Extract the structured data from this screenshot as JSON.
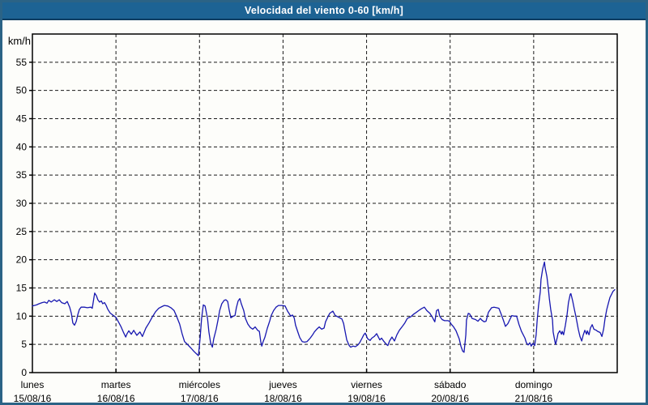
{
  "window": {
    "title": "Velocidad del viento 0-60 [km/h]"
  },
  "colors": {
    "title_bar": "#1d6394",
    "title_bar_border": "#0d3c61",
    "title_text": "#ffffff",
    "window_border": "#2b6386",
    "background": "#fdfdfa",
    "grid": "#1a1a1a",
    "axis": "#000000",
    "tick_text": "#000000",
    "line": "#1717b0"
  },
  "chart_data": {
    "type": "line",
    "title": "Velocidad del viento 0-60 [km/h]",
    "ylabel": "km/h",
    "xlabel": "",
    "ylim": [
      0,
      60
    ],
    "yticks": [
      0,
      5,
      10,
      15,
      20,
      25,
      30,
      35,
      40,
      45,
      50,
      55
    ],
    "grid": "dashed",
    "legend_position": "none",
    "x_unit": "hours from lunes 15/08/16 00:00",
    "x_range_hours": [
      0,
      168
    ],
    "x_days": [
      {
        "name": "lunes",
        "date": "15/08/16"
      },
      {
        "name": "martes",
        "date": "16/08/16"
      },
      {
        "name": "miércoles",
        "date": "17/08/16"
      },
      {
        "name": "jueves",
        "date": "18/08/16"
      },
      {
        "name": "viernes",
        "date": "19/08/16"
      },
      {
        "name": "sábado",
        "date": "20/08/16"
      },
      {
        "name": "domingo",
        "date": "21/08/16"
      }
    ],
    "series": [
      {
        "name": "velocidad del viento",
        "unit": "km/h",
        "color": "#1717b0",
        "points": [
          [
            0,
            11.8
          ],
          [
            1.2,
            12
          ],
          [
            1.9,
            12.2
          ],
          [
            2.8,
            12.4
          ],
          [
            3.5,
            12.5
          ],
          [
            4.2,
            12.3
          ],
          [
            4.7,
            12.8
          ],
          [
            5.4,
            12.5
          ],
          [
            6.3,
            12.9
          ],
          [
            7,
            12.6
          ],
          [
            7.7,
            12.9
          ],
          [
            8.4,
            12.4
          ],
          [
            9.3,
            12.2
          ],
          [
            10,
            12.6
          ],
          [
            10.7,
            11.6
          ],
          [
            11.2,
            10.5
          ],
          [
            11.6,
            8.8
          ],
          [
            12.1,
            8.4
          ],
          [
            12.6,
            9.1
          ],
          [
            13,
            10.2
          ],
          [
            13.5,
            11.2
          ],
          [
            14,
            11.6
          ],
          [
            14.9,
            11.6
          ],
          [
            15.8,
            11.5
          ],
          [
            16.8,
            11.6
          ],
          [
            17.2,
            11.4
          ],
          [
            17.7,
            13.4
          ],
          [
            17.9,
            14.1
          ],
          [
            18.4,
            13.6
          ],
          [
            18.8,
            12.9
          ],
          [
            19.3,
            12.5
          ],
          [
            19.8,
            12.7
          ],
          [
            20.2,
            12.2
          ],
          [
            20.7,
            12.4
          ],
          [
            21.2,
            11.9
          ],
          [
            21.6,
            11.3
          ],
          [
            22.3,
            10.6
          ],
          [
            23.3,
            10.1
          ],
          [
            24,
            9.8
          ],
          [
            24.7,
            9
          ],
          [
            25.4,
            8.2
          ],
          [
            26.1,
            7.2
          ],
          [
            26.8,
            6.3
          ],
          [
            27.2,
            6.9
          ],
          [
            27.7,
            7.4
          ],
          [
            28.4,
            6.8
          ],
          [
            29.1,
            7.5
          ],
          [
            30,
            6.6
          ],
          [
            30.9,
            7.2
          ],
          [
            31.6,
            6.4
          ],
          [
            32.6,
            7.9
          ],
          [
            33.5,
            8.8
          ],
          [
            34.4,
            9.8
          ],
          [
            35.4,
            10.8
          ],
          [
            36.3,
            11.4
          ],
          [
            37.2,
            11.7
          ],
          [
            37.9,
            11.9
          ],
          [
            38.9,
            11.8
          ],
          [
            39.8,
            11.5
          ],
          [
            40.7,
            11
          ],
          [
            41.4,
            10
          ],
          [
            42.3,
            8.6
          ],
          [
            43,
            6.9
          ],
          [
            43.7,
            5.5
          ],
          [
            44.7,
            4.9
          ],
          [
            45.6,
            4.3
          ],
          [
            46.5,
            3.7
          ],
          [
            47.7,
            3
          ],
          [
            48.2,
            6.2
          ],
          [
            48.6,
            9.6
          ],
          [
            49.1,
            12
          ],
          [
            49.6,
            11.8
          ],
          [
            50.3,
            9.6
          ],
          [
            50.7,
            7.2
          ],
          [
            51.2,
            5.3
          ],
          [
            51.7,
            4.5
          ],
          [
            52.1,
            6
          ],
          [
            52.8,
            7.7
          ],
          [
            53.3,
            9.3
          ],
          [
            53.8,
            11
          ],
          [
            54.4,
            12.2
          ],
          [
            55.1,
            12.8
          ],
          [
            55.6,
            12.9
          ],
          [
            56.1,
            12.6
          ],
          [
            56.5,
            11.2
          ],
          [
            57,
            9.7
          ],
          [
            57.7,
            10
          ],
          [
            58.2,
            10.1
          ],
          [
            58.6,
            11.5
          ],
          [
            59.1,
            12.7
          ],
          [
            59.6,
            13.1
          ],
          [
            60,
            12.2
          ],
          [
            60.7,
            11
          ],
          [
            61.2,
            9.6
          ],
          [
            61.9,
            8.6
          ],
          [
            62.6,
            8
          ],
          [
            63.3,
            7.7
          ],
          [
            64,
            8.1
          ],
          [
            64.7,
            7.5
          ],
          [
            65.2,
            7.3
          ],
          [
            65.6,
            5.5
          ],
          [
            65.9,
            4.7
          ],
          [
            66.3,
            5.5
          ],
          [
            66.8,
            6.3
          ],
          [
            67.5,
            7.9
          ],
          [
            68.2,
            9.2
          ],
          [
            68.6,
            10.1
          ],
          [
            69.3,
            11
          ],
          [
            70,
            11.6
          ],
          [
            70.7,
            11.9
          ],
          [
            71.7,
            11.9
          ],
          [
            72.6,
            11.8
          ],
          [
            73.3,
            10.9
          ],
          [
            73.8,
            10.4
          ],
          [
            74.2,
            10
          ],
          [
            74.7,
            10.2
          ],
          [
            75.2,
            9.7
          ],
          [
            75.6,
            8.4
          ],
          [
            76.3,
            7.1
          ],
          [
            76.8,
            6.2
          ],
          [
            77.5,
            5.5
          ],
          [
            78.2,
            5.4
          ],
          [
            78.9,
            5.5
          ],
          [
            79.8,
            6.1
          ],
          [
            80.5,
            6.7
          ],
          [
            81,
            7.2
          ],
          [
            81.7,
            7.7
          ],
          [
            82.4,
            8.1
          ],
          [
            83.1,
            7.7
          ],
          [
            83.8,
            7.9
          ],
          [
            84.2,
            9
          ],
          [
            84.9,
            9.9
          ],
          [
            85.4,
            10.5
          ],
          [
            86.3,
            10.9
          ],
          [
            87,
            10.1
          ],
          [
            87.7,
            9.9
          ],
          [
            88.9,
            9.5
          ],
          [
            89.4,
            8.7
          ],
          [
            89.8,
            7.4
          ],
          [
            90.3,
            5.8
          ],
          [
            91,
            4.8
          ],
          [
            91.4,
            4.5
          ],
          [
            92.1,
            4.7
          ],
          [
            92.8,
            4.6
          ],
          [
            93.5,
            4.9
          ],
          [
            94,
            5.3
          ],
          [
            94.7,
            6.1
          ],
          [
            95.2,
            6.7
          ],
          [
            95.6,
            7
          ],
          [
            96.3,
            6
          ],
          [
            97,
            5.7
          ],
          [
            97.5,
            6.1
          ],
          [
            98.2,
            6.4
          ],
          [
            98.9,
            6.9
          ],
          [
            99.8,
            5.8
          ],
          [
            100.3,
            6.1
          ],
          [
            101,
            5.5
          ],
          [
            101.7,
            5
          ],
          [
            102.1,
            4.8
          ],
          [
            102.6,
            5.6
          ],
          [
            103.3,
            6.3
          ],
          [
            104,
            5.6
          ],
          [
            104.7,
            6.7
          ],
          [
            105.4,
            7.5
          ],
          [
            106.3,
            8.2
          ],
          [
            107,
            8.8
          ],
          [
            107.7,
            9.6
          ],
          [
            108.7,
            9.9
          ],
          [
            109.4,
            10.3
          ],
          [
            110.1,
            10.6
          ],
          [
            111,
            11
          ],
          [
            111.7,
            11.3
          ],
          [
            112.6,
            11.6
          ],
          [
            113.3,
            11
          ],
          [
            114.2,
            10.5
          ],
          [
            114.9,
            9.8
          ],
          [
            115.6,
            9
          ],
          [
            116.1,
            11
          ],
          [
            116.6,
            11.2
          ],
          [
            117,
            10
          ],
          [
            117.7,
            9.4
          ],
          [
            118.4,
            9.2
          ],
          [
            119.4,
            9.2
          ],
          [
            119.8,
            9.1
          ],
          [
            120.3,
            8.6
          ],
          [
            121,
            8.1
          ],
          [
            121.7,
            7.4
          ],
          [
            122.2,
            6.6
          ],
          [
            122.6,
            6
          ],
          [
            123.1,
            4.7
          ],
          [
            123.6,
            3.8
          ],
          [
            124,
            3.6
          ],
          [
            124.5,
            6.7
          ],
          [
            124.7,
            9.3
          ],
          [
            125.2,
            10.5
          ],
          [
            125.6,
            10.4
          ],
          [
            126.3,
            9.6
          ],
          [
            127.3,
            9.4
          ],
          [
            128,
            9.1
          ],
          [
            128.7,
            9.6
          ],
          [
            129.1,
            9.3
          ],
          [
            129.8,
            9
          ],
          [
            130.3,
            9.1
          ],
          [
            131,
            10.7
          ],
          [
            131.9,
            11.5
          ],
          [
            132.6,
            11.6
          ],
          [
            133.3,
            11.5
          ],
          [
            134,
            11.4
          ],
          [
            134.7,
            10.3
          ],
          [
            135.4,
            9.1
          ],
          [
            135.9,
            8.2
          ],
          [
            136.6,
            8.7
          ],
          [
            137.3,
            9.6
          ],
          [
            137.7,
            10.1
          ],
          [
            138.4,
            10
          ],
          [
            139.1,
            10
          ],
          [
            139.8,
            8.5
          ],
          [
            140.5,
            7.3
          ],
          [
            141.5,
            6.1
          ],
          [
            141.9,
            5.3
          ],
          [
            142.4,
            4.9
          ],
          [
            142.9,
            5.3
          ],
          [
            143.3,
            4.7
          ],
          [
            143.8,
            5.2
          ],
          [
            144.3,
            4.8
          ],
          [
            144.7,
            6.7
          ],
          [
            145,
            9.3
          ],
          [
            145.4,
            11.9
          ],
          [
            145.9,
            14.3
          ],
          [
            146.1,
            16.5
          ],
          [
            146.6,
            18.4
          ],
          [
            147.1,
            19.6
          ],
          [
            147.3,
            18.6
          ],
          [
            147.8,
            17
          ],
          [
            148.2,
            15
          ],
          [
            148.5,
            13.1
          ],
          [
            148.9,
            11.2
          ],
          [
            149.4,
            9.3
          ],
          [
            149.6,
            7.2
          ],
          [
            150.1,
            5.5
          ],
          [
            150.3,
            5
          ],
          [
            150.8,
            6.3
          ],
          [
            151,
            6.9
          ],
          [
            151.5,
            7.4
          ],
          [
            152,
            6.8
          ],
          [
            152.2,
            7.3
          ],
          [
            152.6,
            6.7
          ],
          [
            153.1,
            8.4
          ],
          [
            153.6,
            10.3
          ],
          [
            154,
            12.4
          ],
          [
            154.5,
            13.9
          ],
          [
            154.7,
            14
          ],
          [
            155.2,
            12.7
          ],
          [
            155.7,
            11.2
          ],
          [
            156.1,
            10
          ],
          [
            156.4,
            9.1
          ],
          [
            156.8,
            7.7
          ],
          [
            157.3,
            6.4
          ],
          [
            157.8,
            5.6
          ],
          [
            158.2,
            6.6
          ],
          [
            158.7,
            7.5
          ],
          [
            159.2,
            6.8
          ],
          [
            159.4,
            7.4
          ],
          [
            159.9,
            6.7
          ],
          [
            160.3,
            7.9
          ],
          [
            160.8,
            8.5
          ],
          [
            161.3,
            7.7
          ],
          [
            162,
            7.5
          ],
          [
            162.4,
            7.3
          ],
          [
            163.1,
            7.1
          ],
          [
            163.6,
            6.4
          ],
          [
            164.1,
            7.7
          ],
          [
            164.5,
            9.6
          ],
          [
            165,
            11.2
          ],
          [
            165.5,
            12.4
          ],
          [
            165.9,
            13.3
          ],
          [
            166.4,
            13.9
          ],
          [
            166.8,
            14.4
          ],
          [
            167.3,
            14.7
          ]
        ]
      }
    ]
  }
}
